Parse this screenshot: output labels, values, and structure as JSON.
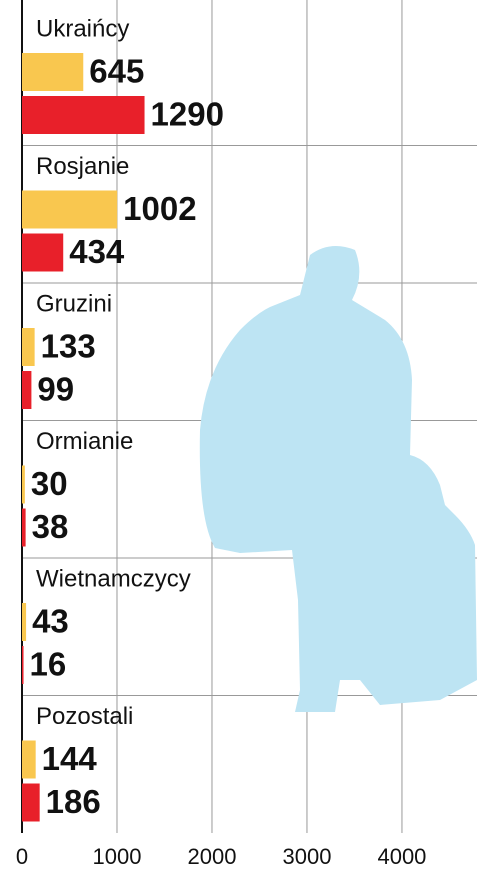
{
  "chart_data": {
    "type": "bar",
    "orientation": "horizontal",
    "categories": [
      "Ukraińcy",
      "Rosjanie",
      "Gruzini",
      "Ormianie",
      "Wietnamczycy",
      "Pozostali"
    ],
    "series": [
      {
        "color": "#f9c74f",
        "values": [
          645,
          1002,
          133,
          30,
          43,
          144
        ]
      },
      {
        "color": "#e8202a",
        "values": [
          1290,
          434,
          99,
          38,
          16,
          186
        ]
      }
    ],
    "xlim": [
      0,
      4790
    ],
    "xticks": [
      0,
      1000,
      2000,
      3000,
      4000
    ],
    "grid": true
  }
}
